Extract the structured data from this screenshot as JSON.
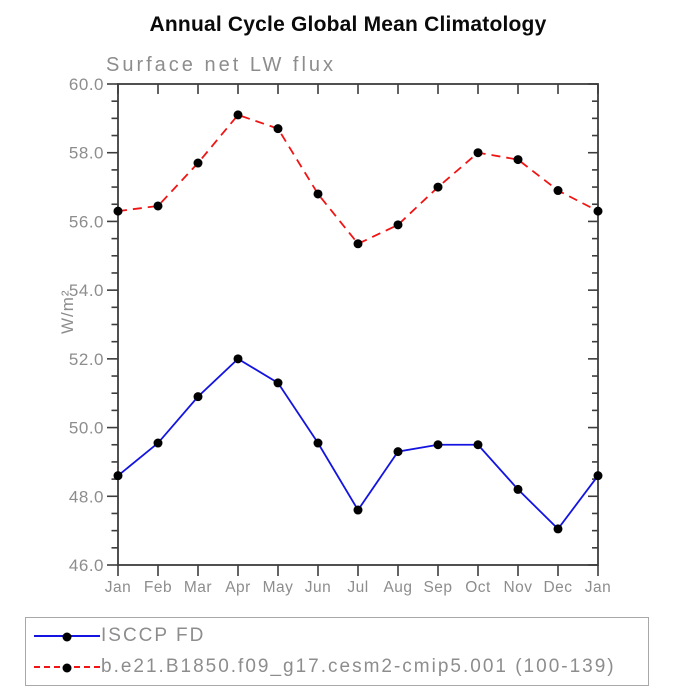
{
  "chart_data": {
    "type": "line",
    "title": "Annual Cycle Global Mean Climatology",
    "subtitle": "Surface net LW flux",
    "ylabel": "W/m²",
    "xlabel": "",
    "categories": [
      "Jan",
      "Feb",
      "Mar",
      "Apr",
      "May",
      "Jun",
      "Jul",
      "Aug",
      "Sep",
      "Oct",
      "Nov",
      "Dec",
      "Jan"
    ],
    "ytick_labels": [
      "60.0",
      "58.0",
      "56.0",
      "54.0",
      "52.0",
      "50.0",
      "48.0",
      "46.0"
    ],
    "ylim": [
      46.0,
      60.0
    ],
    "ytick_interval": 2.0,
    "yminor_interval": 0.5,
    "grid": false,
    "legend_position": "bottom-left",
    "series": [
      {
        "name": "ISCCP FD",
        "line_style": "solid",
        "color": "#1414e0",
        "marker": "circle",
        "marker_color": "#000000",
        "values": [
          48.6,
          49.55,
          50.9,
          52.0,
          51.3,
          49.55,
          47.6,
          49.3,
          49.5,
          49.5,
          48.2,
          47.05,
          48.6
        ]
      },
      {
        "name": "b.e21.B1850.f09_g17.cesm2-cmip5.001 (100-139)",
        "line_style": "dashed",
        "color": "#f01414",
        "marker": "circle",
        "marker_color": "#000000",
        "values": [
          56.3,
          56.45,
          57.7,
          59.1,
          58.7,
          56.8,
          55.35,
          55.9,
          57.0,
          58.0,
          57.8,
          56.9,
          56.3
        ]
      }
    ],
    "colors": {
      "axis": "#3d3d3d",
      "tick_label": "#8d8d8d",
      "title": "#0a0a0a",
      "legend_border": "#a8a8a8"
    }
  }
}
